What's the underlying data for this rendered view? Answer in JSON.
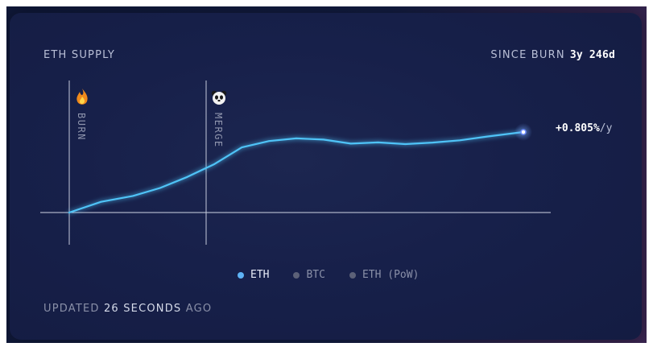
{
  "header": {
    "title": "ETH SUPPLY",
    "since_label": "SINCE BURN",
    "since_value": "3y 246d"
  },
  "markers": {
    "burn_label": "BURN",
    "merge_label": "MERGE",
    "burn_icon": "flame-icon",
    "merge_icon": "panda-icon"
  },
  "annotation": {
    "rate_value": "+0.805%",
    "rate_unit": "/y"
  },
  "legend": {
    "items": [
      {
        "label": "ETH",
        "active": true
      },
      {
        "label": "BTC",
        "active": false
      },
      {
        "label": "ETH (PoW)",
        "active": false
      }
    ]
  },
  "footer": {
    "prefix": "UPDATED",
    "count": "26 SECONDS",
    "suffix": "AGO"
  },
  "colors": {
    "eth_line": "#4fc3f7",
    "inactive_dot": "#5c6178",
    "active_dot": "#5eb3f5"
  },
  "chart_data": {
    "type": "line",
    "title": "ETH SUPPLY",
    "xlabel": "",
    "ylabel": "",
    "x": [
      0,
      0.07,
      0.14,
      0.2,
      0.26,
      0.32,
      0.38,
      0.44,
      0.5,
      0.56,
      0.62,
      0.68,
      0.74,
      0.8,
      0.86,
      0.92,
      1.0
    ],
    "series": [
      {
        "name": "ETH",
        "values": [
          0,
          6.2,
          9.6,
          14.2,
          20.6,
          28.1,
          37.7,
          41.4,
          42.9,
          42.2,
          39.9,
          40.6,
          39.6,
          40.5,
          41.8,
          44.0,
          46.6
        ]
      }
    ],
    "ylim": [
      0,
      50
    ],
    "grid": false,
    "legend": "bottom"
  }
}
